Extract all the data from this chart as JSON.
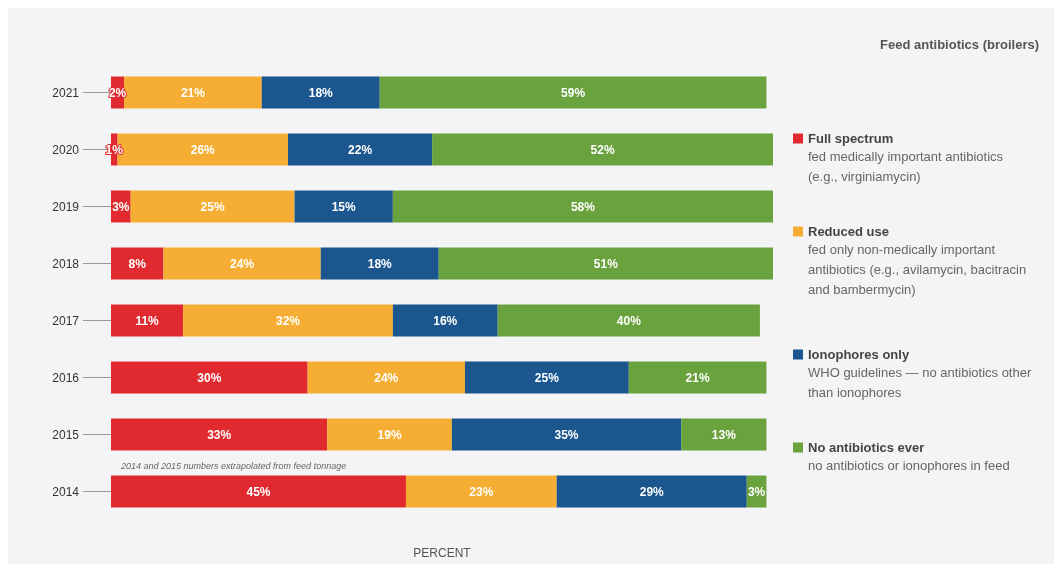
{
  "chart_data": {
    "type": "bar",
    "orientation": "horizontal",
    "stacked": true,
    "title": "Feed antibiotics (broilers)",
    "xlabel": "PERCENT",
    "categories": [
      "2021",
      "2020",
      "2019",
      "2018",
      "2017",
      "2016",
      "2015",
      "2014"
    ],
    "series": [
      {
        "name": "Full spectrum",
        "color": "#e02a2f",
        "values": [
          2,
          1,
          3,
          8,
          11,
          30,
          33,
          45
        ],
        "value_labels": [
          "2%",
          "1%",
          "3%",
          "8%",
          "11%",
          "30%",
          "33%",
          "45%"
        ]
      },
      {
        "name": "Reduced use",
        "color": "#f5ae33",
        "values": [
          21,
          26,
          25,
          24,
          32,
          24,
          19,
          23
        ],
        "value_labels": [
          "21%",
          "26%",
          "25%",
          "24%",
          "32%",
          "24%",
          "19%",
          "23%"
        ]
      },
      {
        "name": "Ionophores only",
        "color": "#1b568e",
        "values": [
          18,
          22,
          15,
          18,
          16,
          25,
          35,
          29
        ],
        "value_labels": [
          "18%",
          "22%",
          "15%",
          "18%",
          "16%",
          "25%",
          "35%",
          "29%"
        ]
      },
      {
        "name": "No antibiotics ever",
        "color": "#6aa23e",
        "values": [
          59,
          52,
          58,
          51,
          40,
          21,
          13,
          3
        ],
        "value_labels": [
          "59%",
          "52%",
          "58%",
          "51%",
          "40%",
          "21%",
          "13%",
          "3%"
        ]
      }
    ],
    "legend": "right",
    "grid": false,
    "annotations": [
      "2014 and 2015 numbers extrapolated from feed tonnage",
      "fed medically important antibiotics (e.g., virginiamycin)",
      "fed only non-medically important antibiotics (e.g., avilamycin, bacitracin and bambermycin)",
      "WHO guidelines — no antibiotics other than ionophores",
      "no antibiotics or ionophores in feed"
    ]
  }
}
